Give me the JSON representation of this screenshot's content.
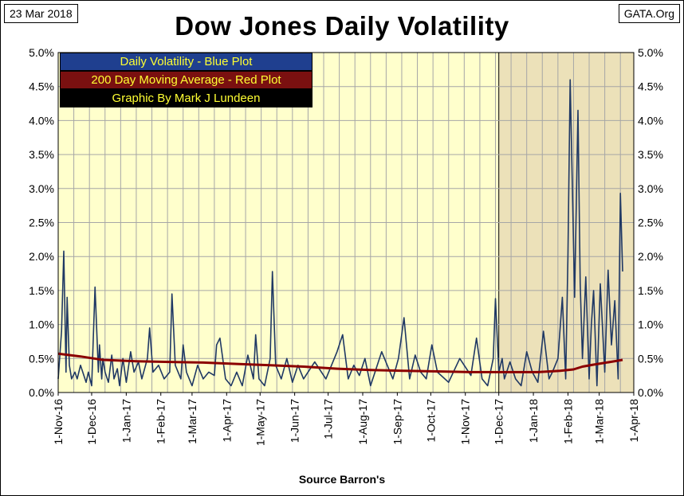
{
  "header": {
    "date": "23 Mar 2018",
    "source": "GATA.Org",
    "title": "Dow Jones Daily Volatility"
  },
  "legend": [
    "Daily Volatility - Blue Plot",
    "200 Day Moving Average - Red Plot",
    "Graphic By Mark J Lundeen"
  ],
  "chart_data": {
    "type": "line",
    "title": "Dow Jones Daily Volatility",
    "xlabel": "Source Barron's",
    "ylabel": "",
    "ylim": [
      0,
      5.0
    ],
    "y_ticks": [
      "0.0%",
      "0.5%",
      "1.0%",
      "1.5%",
      "2.0%",
      "2.5%",
      "3.0%",
      "3.5%",
      "4.0%",
      "4.5%",
      "5.0%"
    ],
    "x_ticks": [
      "1-Nov-16",
      "1-Dec-16",
      "1-Jan-17",
      "1-Feb-17",
      "1-Mar-17",
      "1-Apr-17",
      "1-May-17",
      "1-Jun-17",
      "1-Jul-17",
      "1-Aug-17",
      "1-Sep-17",
      "1-Oct-17",
      "1-Nov-17",
      "1-Dec-17",
      "1-Jan-18",
      "1-Feb-18",
      "1-Mar-18",
      "1-Apr-18"
    ],
    "x_tick_days": [
      0,
      30,
      61,
      92,
      120,
      151,
      181,
      212,
      242,
      273,
      304,
      334,
      365,
      395,
      426,
      457,
      485,
      516
    ],
    "x_range_days": [
      0,
      516
    ],
    "highlight_region_days": [
      395,
      516
    ],
    "colors": {
      "plot_bg": "#ffffcc",
      "highlight_bg": "#ece1b9",
      "daily": "#1f3864",
      "ma": "#8b0000"
    },
    "series": [
      {
        "name": "Daily Volatility",
        "color": "#1f3864",
        "x_days": [
          0,
          3,
          5,
          7,
          8,
          10,
          12,
          15,
          17,
          20,
          23,
          25,
          27,
          30,
          33,
          36,
          37,
          39,
          40,
          42,
          45,
          48,
          50,
          53,
          55,
          58,
          61,
          65,
          68,
          72,
          75,
          80,
          82,
          85,
          90,
          95,
          100,
          102,
          105,
          110,
          112,
          115,
          120,
          125,
          130,
          135,
          140,
          142,
          145,
          150,
          155,
          160,
          165,
          170,
          175,
          177,
          180,
          185,
          190,
          192,
          195,
          200,
          205,
          210,
          215,
          220,
          230,
          240,
          250,
          255,
          260,
          265,
          270,
          275,
          280,
          290,
          300,
          305,
          310,
          315,
          320,
          325,
          330,
          335,
          340,
          350,
          360,
          370,
          375,
          380,
          385,
          390,
          392,
          395,
          398,
          400,
          405,
          410,
          415,
          420,
          425,
          430,
          435,
          440,
          443,
          448,
          452,
          455,
          457,
          459,
          461,
          463,
          466,
          468,
          470,
          473,
          476,
          478,
          480,
          483,
          486,
          490,
          493,
          496,
          499,
          502,
          504,
          506
        ],
        "values": [
          0.2,
          0.9,
          2.08,
          0.3,
          1.4,
          0.4,
          0.2,
          0.3,
          0.2,
          0.4,
          0.25,
          0.15,
          0.3,
          0.1,
          1.55,
          0.3,
          0.7,
          0.2,
          0.5,
          0.3,
          0.15,
          0.55,
          0.2,
          0.35,
          0.1,
          0.5,
          0.15,
          0.6,
          0.3,
          0.45,
          0.2,
          0.5,
          0.95,
          0.3,
          0.4,
          0.2,
          0.3,
          1.45,
          0.4,
          0.2,
          0.7,
          0.3,
          0.1,
          0.4,
          0.2,
          0.3,
          0.25,
          0.7,
          0.8,
          0.2,
          0.1,
          0.3,
          0.1,
          0.55,
          0.2,
          0.85,
          0.2,
          0.1,
          0.5,
          1.78,
          0.4,
          0.2,
          0.5,
          0.15,
          0.4,
          0.2,
          0.45,
          0.2,
          0.6,
          0.85,
          0.2,
          0.4,
          0.25,
          0.5,
          0.1,
          0.6,
          0.2,
          0.5,
          1.1,
          0.2,
          0.55,
          0.3,
          0.2,
          0.7,
          0.3,
          0.15,
          0.5,
          0.25,
          0.8,
          0.2,
          0.1,
          0.5,
          1.38,
          0.3,
          0.5,
          0.2,
          0.45,
          0.2,
          0.1,
          0.6,
          0.3,
          0.15,
          0.9,
          0.2,
          0.3,
          0.5,
          1.4,
          0.2,
          2.0,
          4.6,
          3.0,
          1.4,
          4.15,
          1.6,
          0.5,
          1.7,
          0.2,
          1.0,
          1.5,
          0.1,
          1.6,
          0.3,
          1.8,
          0.7,
          1.35,
          0.2,
          2.93,
          1.78
        ],
        "end_day": 506
      },
      {
        "name": "200 Day Moving Average",
        "color": "#8b0000",
        "x_days": [
          0,
          20,
          40,
          70,
          100,
          130,
          160,
          190,
          220,
          250,
          280,
          310,
          340,
          370,
          400,
          430,
          450,
          462,
          470,
          480,
          495,
          506
        ],
        "values": [
          0.57,
          0.53,
          0.48,
          0.46,
          0.45,
          0.44,
          0.42,
          0.4,
          0.38,
          0.35,
          0.33,
          0.32,
          0.31,
          0.3,
          0.3,
          0.3,
          0.32,
          0.34,
          0.38,
          0.41,
          0.45,
          0.48
        ]
      }
    ]
  }
}
